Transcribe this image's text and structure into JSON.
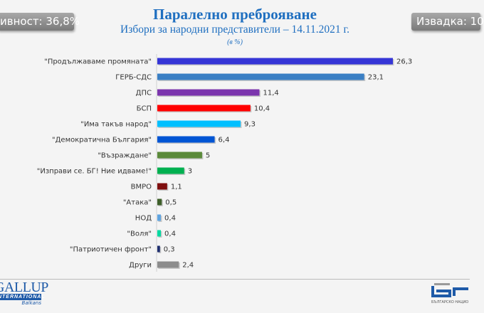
{
  "header": {
    "title": "Паралелно преброяване",
    "subtitle": "Избори за народни представители – 14.11.2021 г.",
    "unit_note": "(в %)",
    "turnout_tile": "ивност: 36,8%",
    "sample_tile": "Извадка: 10"
  },
  "logos": {
    "left_big": "GALLUP",
    "left_band": "INTERNATIONAL",
    "left_small": "Balkans",
    "right": "БЪЛГАРСКО НАЦИО"
  },
  "chart_data": {
    "type": "bar",
    "orientation": "horizontal",
    "title": "Паралелно преброяване",
    "subtitle": "Избори за народни представители – 14.11.2021 г.",
    "unit": "(в %)",
    "xlim": [
      0,
      27
    ],
    "grid": false,
    "categories": [
      "\"Продължаваме промяната\"",
      "ГЕРБ-СДС",
      "ДПС",
      "БСП",
      "\"Има такъв народ\"",
      "\"Демократична България\"",
      "\"Възраждане\"",
      "\"Изправи се. БГ! Ние идваме!\"",
      "ВМРО",
      "\"Атака\"",
      "НОД",
      "\"Воля\"",
      "\"Патриотичен фронт\"",
      "Други"
    ],
    "values": [
      26.3,
      23.1,
      11.4,
      10.4,
      9.3,
      6.4,
      5,
      3,
      1.1,
      0.5,
      0.4,
      0.4,
      0.3,
      2.4
    ],
    "value_labels": [
      "26,3",
      "23,1",
      "11,4",
      "10,4",
      "9,3",
      "6,4",
      "5",
      "3",
      "1,1",
      "0,5",
      "0,4",
      "0,4",
      "0,3",
      "2,4"
    ],
    "colors": [
      "#3535d6",
      "#3a7fc4",
      "#7b35ad",
      "#ff0000",
      "#00bfff",
      "#0055d4",
      "#5b8a3a",
      "#00b050",
      "#7f0f0f",
      "#3e5f2a",
      "#5fa4e0",
      "#00d9a0",
      "#1f2f6f",
      "#8c8c8c"
    ]
  }
}
